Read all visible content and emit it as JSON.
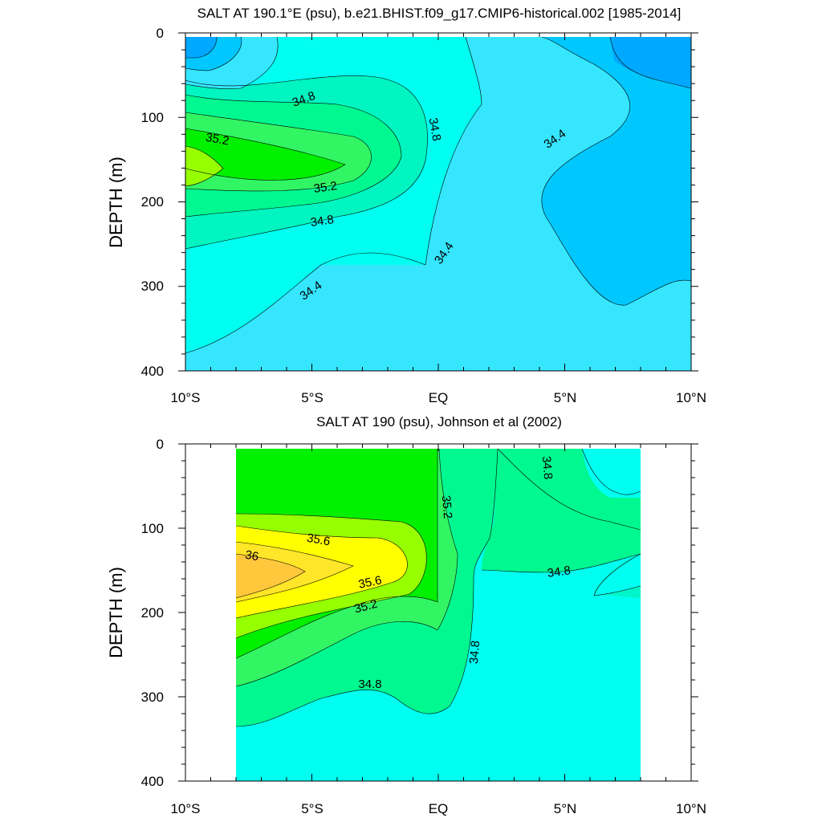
{
  "chart_data": [
    {
      "type": "heatmap",
      "title": "SALT AT 190.1°E (psu), b.e21.BHIST.f09_g17.CMIP6-historical.002 [1985-2014]",
      "xlabel": "",
      "ylabel": "DEPTH (m)",
      "x_tick_labels": [
        "10°S",
        "5°S",
        "EQ",
        "5°N",
        "10°N"
      ],
      "y_tick_labels": [
        "0",
        "100",
        "200",
        "300",
        "400"
      ],
      "xlim": [
        -10,
        10
      ],
      "ylim": [
        400,
        0
      ],
      "contour_labels": [
        "34.8",
        "35.2",
        "34.8",
        "35.2",
        "34.8",
        "34.4",
        "34.4",
        "34.4"
      ],
      "levels": [
        {
          "min": 33.8,
          "max": 34.0,
          "color": "#0096ff"
        },
        {
          "min": 34.0,
          "max": 34.2,
          "color": "#00c8ff"
        },
        {
          "min": 34.2,
          "max": 34.4,
          "color": "#36e6ff"
        },
        {
          "min": 34.4,
          "max": 34.6,
          "color": "#00fff0"
        },
        {
          "min": 34.6,
          "max": 34.8,
          "color": "#00f5c0"
        },
        {
          "min": 34.8,
          "max": 35.0,
          "color": "#00f890"
        },
        {
          "min": 35.0,
          "max": 35.2,
          "color": "#32f564"
        },
        {
          "min": 35.2,
          "max": 35.4,
          "color": "#00f000"
        },
        {
          "min": 35.4,
          "max": 35.6,
          "color": "#96ff00"
        }
      ]
    },
    {
      "type": "heatmap",
      "title": "SALT AT 190 (psu), Johnson et al (2002)",
      "xlabel": "",
      "ylabel": "DEPTH (m)",
      "x_tick_labels": [
        "10°S",
        "5°S",
        "EQ",
        "5°N",
        "10°N"
      ],
      "y_tick_labels": [
        "0",
        "100",
        "200",
        "300",
        "400"
      ],
      "xlim": [
        -10,
        10
      ],
      "ylim": [
        400,
        0
      ],
      "data_extent_x": [
        -8,
        8
      ],
      "contour_labels": [
        "34.8",
        "35.2",
        "35.6",
        "36",
        "35.6",
        "35.2",
        "34.8",
        "34.8",
        "34.8"
      ],
      "levels": [
        {
          "min": 34.4,
          "max": 34.6,
          "color": "#00fff0"
        },
        {
          "min": 34.6,
          "max": 34.8,
          "color": "#00f5c8"
        },
        {
          "min": 34.8,
          "max": 35.0,
          "color": "#00f890"
        },
        {
          "min": 35.0,
          "max": 35.2,
          "color": "#32f564"
        },
        {
          "min": 35.2,
          "max": 35.4,
          "color": "#00f000"
        },
        {
          "min": 35.4,
          "max": 35.6,
          "color": "#96ff00"
        },
        {
          "min": 35.6,
          "max": 35.8,
          "color": "#ffff00"
        },
        {
          "min": 35.8,
          "max": 36.0,
          "color": "#ffe628"
        },
        {
          "min": 36.0,
          "max": 36.2,
          "color": "#ffc83c"
        }
      ]
    }
  ]
}
